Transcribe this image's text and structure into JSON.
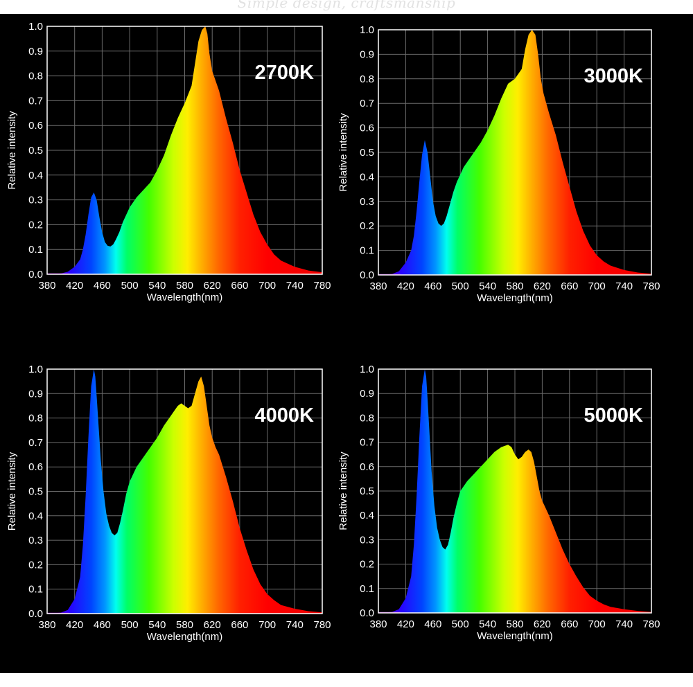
{
  "banner": {
    "text": "Simple design, craftsmanship"
  },
  "colors": {
    "background": "#000000",
    "axis": "#ffffff",
    "grid": "#6b6b6b",
    "text": "#ffffff"
  },
  "chart_data": [
    {
      "type": "area",
      "label": "2700K",
      "xlabel": "Wavelength(nm)",
      "ylabel": "Relative intensity",
      "xlim": [
        380,
        780
      ],
      "ylim": [
        0,
        1.0
      ],
      "xticks": [
        380,
        420,
        460,
        500,
        540,
        580,
        620,
        660,
        700,
        740,
        780
      ],
      "yticks": [
        0.0,
        0.1,
        0.2,
        0.3,
        0.4,
        0.5,
        0.6,
        0.7,
        0.8,
        0.9,
        1.0
      ],
      "grid": true,
      "x": [
        380,
        400,
        410,
        420,
        428,
        432,
        436,
        440,
        444,
        448,
        452,
        456,
        460,
        464,
        468,
        472,
        476,
        480,
        485,
        490,
        495,
        500,
        505,
        510,
        520,
        530,
        540,
        550,
        560,
        570,
        580,
        590,
        595,
        600,
        605,
        610,
        613,
        616,
        620,
        625,
        630,
        640,
        650,
        660,
        670,
        680,
        690,
        700,
        710,
        720,
        740,
        760,
        780
      ],
      "y": [
        0.0,
        0.003,
        0.01,
        0.03,
        0.06,
        0.1,
        0.16,
        0.24,
        0.31,
        0.33,
        0.3,
        0.23,
        0.17,
        0.13,
        0.115,
        0.112,
        0.12,
        0.14,
        0.17,
        0.21,
        0.24,
        0.27,
        0.29,
        0.31,
        0.34,
        0.37,
        0.42,
        0.48,
        0.56,
        0.63,
        0.69,
        0.76,
        0.85,
        0.94,
        0.985,
        1.0,
        0.97,
        0.89,
        0.82,
        0.78,
        0.74,
        0.63,
        0.53,
        0.42,
        0.33,
        0.24,
        0.17,
        0.12,
        0.08,
        0.055,
        0.03,
        0.015,
        0.008
      ]
    },
    {
      "type": "area",
      "label": "3000K",
      "xlabel": "Wavelength(nm)",
      "ylabel": "Relative intensity",
      "xlim": [
        380,
        780
      ],
      "ylim": [
        0,
        1.0
      ],
      "xticks": [
        380,
        420,
        460,
        500,
        540,
        580,
        620,
        660,
        700,
        740,
        780
      ],
      "yticks": [
        0.0,
        0.1,
        0.2,
        0.3,
        0.4,
        0.5,
        0.6,
        0.7,
        0.8,
        0.9,
        1.0
      ],
      "grid": true,
      "x": [
        380,
        400,
        410,
        420,
        428,
        432,
        436,
        440,
        444,
        448,
        452,
        456,
        460,
        464,
        468,
        472,
        476,
        480,
        485,
        490,
        495,
        500,
        505,
        510,
        520,
        530,
        540,
        550,
        560,
        570,
        580,
        590,
        595,
        600,
        605,
        610,
        614,
        618,
        622,
        626,
        630,
        640,
        650,
        660,
        670,
        680,
        690,
        700,
        710,
        720,
        740,
        760,
        780
      ],
      "y": [
        0.0,
        0.004,
        0.015,
        0.05,
        0.1,
        0.16,
        0.26,
        0.38,
        0.49,
        0.55,
        0.5,
        0.4,
        0.3,
        0.24,
        0.21,
        0.2,
        0.21,
        0.24,
        0.29,
        0.34,
        0.38,
        0.41,
        0.44,
        0.46,
        0.5,
        0.54,
        0.59,
        0.65,
        0.72,
        0.78,
        0.8,
        0.84,
        0.92,
        0.98,
        1.0,
        0.98,
        0.9,
        0.8,
        0.74,
        0.7,
        0.66,
        0.57,
        0.46,
        0.36,
        0.26,
        0.18,
        0.12,
        0.08,
        0.055,
        0.038,
        0.02,
        0.01,
        0.005
      ]
    },
    {
      "type": "area",
      "label": "4000K",
      "xlabel": "Wavelength(nm)",
      "ylabel": "Relative intensity",
      "xlim": [
        380,
        780
      ],
      "ylim": [
        0,
        1.0
      ],
      "xticks": [
        380,
        420,
        460,
        500,
        540,
        580,
        620,
        660,
        700,
        740,
        780
      ],
      "yticks": [
        0.0,
        0.1,
        0.2,
        0.3,
        0.4,
        0.5,
        0.6,
        0.7,
        0.8,
        0.9,
        1.0
      ],
      "grid": true,
      "x": [
        380,
        400,
        410,
        420,
        428,
        432,
        436,
        440,
        444,
        448,
        450,
        452,
        455,
        458,
        462,
        466,
        470,
        474,
        478,
        482,
        486,
        490,
        495,
        500,
        505,
        510,
        520,
        530,
        540,
        550,
        560,
        570,
        575,
        580,
        585,
        590,
        595,
        600,
        604,
        608,
        612,
        616,
        620,
        625,
        630,
        640,
        650,
        660,
        670,
        680,
        690,
        700,
        710,
        720,
        740,
        760,
        780
      ],
      "y": [
        0.0,
        0.004,
        0.015,
        0.06,
        0.15,
        0.28,
        0.48,
        0.72,
        0.93,
        1.0,
        0.97,
        0.89,
        0.76,
        0.63,
        0.5,
        0.41,
        0.36,
        0.33,
        0.32,
        0.33,
        0.37,
        0.42,
        0.49,
        0.54,
        0.57,
        0.6,
        0.64,
        0.68,
        0.72,
        0.77,
        0.81,
        0.85,
        0.86,
        0.85,
        0.84,
        0.85,
        0.9,
        0.95,
        0.97,
        0.93,
        0.85,
        0.77,
        0.72,
        0.68,
        0.65,
        0.56,
        0.46,
        0.35,
        0.26,
        0.18,
        0.12,
        0.08,
        0.055,
        0.035,
        0.02,
        0.01,
        0.005
      ]
    },
    {
      "type": "area",
      "label": "5000K",
      "xlabel": "Wavelength(nm)",
      "ylabel": "Relative intensity",
      "xlim": [
        380,
        780
      ],
      "ylim": [
        0,
        1.0
      ],
      "xticks": [
        380,
        420,
        460,
        500,
        540,
        580,
        620,
        660,
        700,
        740,
        780
      ],
      "yticks": [
        0.0,
        0.1,
        0.2,
        0.3,
        0.4,
        0.5,
        0.6,
        0.7,
        0.8,
        0.9,
        1.0
      ],
      "grid": true,
      "x": [
        380,
        400,
        410,
        420,
        428,
        432,
        436,
        440,
        444,
        448,
        450,
        452,
        455,
        458,
        462,
        466,
        470,
        474,
        478,
        482,
        486,
        490,
        495,
        500,
        505,
        510,
        520,
        530,
        540,
        550,
        560,
        570,
        575,
        580,
        585,
        590,
        595,
        600,
        604,
        608,
        612,
        616,
        620,
        625,
        630,
        640,
        650,
        660,
        670,
        680,
        690,
        700,
        710,
        720,
        740,
        760,
        780
      ],
      "y": [
        0.0,
        0.004,
        0.015,
        0.06,
        0.15,
        0.28,
        0.48,
        0.72,
        0.93,
        1.0,
        0.97,
        0.88,
        0.73,
        0.58,
        0.44,
        0.35,
        0.3,
        0.27,
        0.26,
        0.28,
        0.33,
        0.39,
        0.45,
        0.5,
        0.52,
        0.54,
        0.57,
        0.6,
        0.63,
        0.66,
        0.68,
        0.69,
        0.68,
        0.65,
        0.63,
        0.64,
        0.66,
        0.67,
        0.66,
        0.62,
        0.56,
        0.5,
        0.46,
        0.43,
        0.4,
        0.33,
        0.26,
        0.2,
        0.15,
        0.105,
        0.07,
        0.05,
        0.035,
        0.025,
        0.015,
        0.008,
        0.004
      ]
    }
  ]
}
